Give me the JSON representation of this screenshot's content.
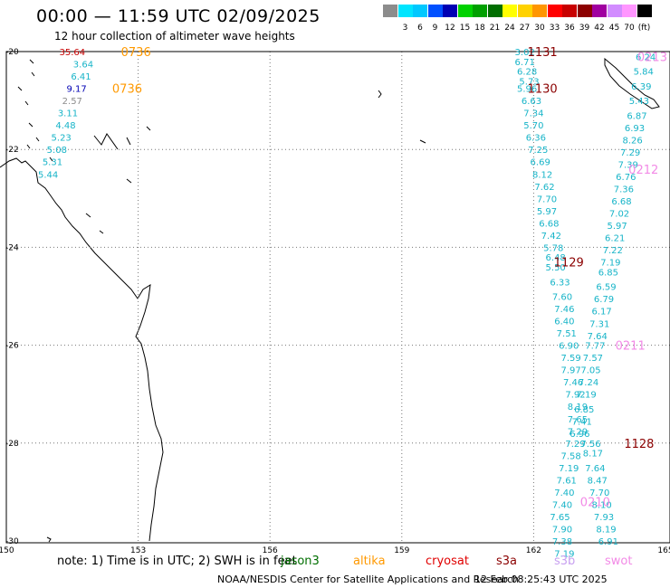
{
  "title": "00:00 — 11:59 UTC 02/09/2025",
  "subtitle": "12 hour collection of altimeter wave heights",
  "legend": {
    "unit": "(ft)",
    "bins": [
      {
        "label": "",
        "color": "#8c8c8c"
      },
      {
        "label": "3",
        "color": "#00e5ff"
      },
      {
        "label": "6",
        "color": "#00c8ff"
      },
      {
        "label": "9",
        "color": "#0050ff"
      },
      {
        "label": "12",
        "color": "#0000b4"
      },
      {
        "label": "15",
        "color": "#00d200"
      },
      {
        "label": "18",
        "color": "#00a000"
      },
      {
        "label": "21",
        "color": "#006e00"
      },
      {
        "label": "24",
        "color": "#ffff00"
      },
      {
        "label": "27",
        "color": "#ffd200"
      },
      {
        "label": "30",
        "color": "#ff9600"
      },
      {
        "label": "33",
        "color": "#ff0000"
      },
      {
        "label": "36",
        "color": "#c80000"
      },
      {
        "label": "39",
        "color": "#8c0000"
      },
      {
        "label": "42",
        "color": "#a000a0"
      },
      {
        "label": "45",
        "color": "#d28cff"
      },
      {
        "label": "70",
        "color": "#ff96ff"
      },
      {
        "label": "(ft)",
        "color": "#000000"
      }
    ]
  },
  "axes": {
    "lat_labels": [
      "-20",
      "-22",
      "-24",
      "-26",
      "-28",
      "-30"
    ],
    "lon_labels": [
      "150",
      "153",
      "156",
      "159",
      "162",
      "165"
    ]
  },
  "colors": {
    "swh": "#17b4c8",
    "pass_dark": "#8b0000",
    "pass_pink": "#f28ae6",
    "pass_orange": "#ff9900"
  },
  "passes": [
    {
      "label": "0736",
      "lon": 152.95,
      "lat": -20.0,
      "color": "#ff9900"
    },
    {
      "label": "0736",
      "lon": 152.75,
      "lat": -20.75,
      "color": "#ff9900"
    },
    {
      "label": "1131",
      "lon": 162.2,
      "lat": -20.0,
      "color": "#8b0000"
    },
    {
      "label": "1130",
      "lon": 162.2,
      "lat": -20.75,
      "color": "#8b0000"
    },
    {
      "label": "1129",
      "lon": 162.8,
      "lat": -24.3,
      "color": "#8b0000"
    },
    {
      "label": "1128",
      "lon": 164.4,
      "lat": -28.0,
      "color": "#8b0000"
    },
    {
      "label": "0213",
      "lon": 164.7,
      "lat": -20.1,
      "color": "#f28ae6"
    },
    {
      "label": "0212",
      "lon": 164.5,
      "lat": -22.4,
      "color": "#f28ae6"
    },
    {
      "label": "0211",
      "lon": 164.2,
      "lat": -26.0,
      "color": "#f28ae6"
    },
    {
      "label": "0210",
      "lon": 163.4,
      "lat": -29.2,
      "color": "#f28ae6"
    }
  ],
  "swh": [
    {
      "v": "35.64",
      "lon": 151.5,
      "lat": -20.0,
      "color": "#c80000"
    },
    {
      "v": "3.64",
      "lon": 151.75,
      "lat": -20.25
    },
    {
      "v": "6.41",
      "lon": 151.7,
      "lat": -20.5
    },
    {
      "v": "9.17",
      "lon": 151.6,
      "lat": -20.75,
      "color": "#0000b4"
    },
    {
      "v": "2.57",
      "lon": 151.5,
      "lat": -21.0,
      "color": "#8c8c8c"
    },
    {
      "v": "3.11",
      "lon": 151.4,
      "lat": -21.25
    },
    {
      "v": "4.48",
      "lon": 151.35,
      "lat": -21.5
    },
    {
      "v": "5.23",
      "lon": 151.25,
      "lat": -21.75
    },
    {
      "v": "5.08",
      "lon": 151.15,
      "lat": -22.0
    },
    {
      "v": "5.31",
      "lon": 151.05,
      "lat": -22.25
    },
    {
      "v": "5.44",
      "lon": 150.95,
      "lat": -22.5
    },
    {
      "v": "3.02",
      "lon": 161.8,
      "lat": -20.0
    },
    {
      "v": "6.71",
      "lon": 161.8,
      "lat": -20.2
    },
    {
      "v": "6.28",
      "lon": 161.85,
      "lat": -20.4
    },
    {
      "v": "5.73",
      "lon": 161.9,
      "lat": -20.6
    },
    {
      "v": "5.96",
      "lon": 161.85,
      "lat": -20.75
    },
    {
      "v": "6.63",
      "lon": 161.95,
      "lat": -21.0
    },
    {
      "v": "7.34",
      "lon": 162.0,
      "lat": -21.25
    },
    {
      "v": "5.70",
      "lon": 162.0,
      "lat": -21.5
    },
    {
      "v": "6.36",
      "lon": 162.05,
      "lat": -21.75
    },
    {
      "v": "7.25",
      "lon": 162.1,
      "lat": -22.0
    },
    {
      "v": "6.69",
      "lon": 162.15,
      "lat": -22.25
    },
    {
      "v": "8.12",
      "lon": 162.2,
      "lat": -22.5
    },
    {
      "v": "7.62",
      "lon": 162.25,
      "lat": -22.75
    },
    {
      "v": "7.70",
      "lon": 162.3,
      "lat": -23.0
    },
    {
      "v": "5.97",
      "lon": 162.3,
      "lat": -23.25
    },
    {
      "v": "6.68",
      "lon": 162.35,
      "lat": -23.5
    },
    {
      "v": "7.42",
      "lon": 162.4,
      "lat": -23.75
    },
    {
      "v": "5.78",
      "lon": 162.45,
      "lat": -24.0
    },
    {
      "v": "6.48",
      "lon": 162.5,
      "lat": -24.2
    },
    {
      "v": "5.50",
      "lon": 162.5,
      "lat": -24.4
    },
    {
      "v": "6.33",
      "lon": 162.6,
      "lat": -24.7
    },
    {
      "v": "7.60",
      "lon": 162.65,
      "lat": -25.0
    },
    {
      "v": "7.46",
      "lon": 162.7,
      "lat": -25.25
    },
    {
      "v": "6.40",
      "lon": 162.7,
      "lat": -25.5
    },
    {
      "v": "7.51",
      "lon": 162.75,
      "lat": -25.75
    },
    {
      "v": "6.90",
      "lon": 162.8,
      "lat": -26.0
    },
    {
      "v": "7.59",
      "lon": 162.85,
      "lat": -26.25
    },
    {
      "v": "7.97",
      "lon": 162.85,
      "lat": -26.5
    },
    {
      "v": "7.46",
      "lon": 162.9,
      "lat": -26.75
    },
    {
      "v": "7.92",
      "lon": 162.95,
      "lat": -27.0
    },
    {
      "v": "8.19",
      "lon": 163.0,
      "lat": -27.25
    },
    {
      "v": "7.65",
      "lon": 163.0,
      "lat": -27.5
    },
    {
      "v": "7.29",
      "lon": 163.0,
      "lat": -27.75
    },
    {
      "v": "7.29",
      "lon": 162.95,
      "lat": -28.0
    },
    {
      "v": "7.58",
      "lon": 162.85,
      "lat": -28.25
    },
    {
      "v": "7.19",
      "lon": 162.8,
      "lat": -28.5
    },
    {
      "v": "7.61",
      "lon": 162.75,
      "lat": -28.75
    },
    {
      "v": "7.40",
      "lon": 162.7,
      "lat": -29.0
    },
    {
      "v": "7.40",
      "lon": 162.65,
      "lat": -29.25
    },
    {
      "v": "7.65",
      "lon": 162.6,
      "lat": -29.5
    },
    {
      "v": "7.90",
      "lon": 162.65,
      "lat": -29.75
    },
    {
      "v": "7.38",
      "lon": 162.65,
      "lat": -30.0
    },
    {
      "v": "7.19",
      "lon": 162.7,
      "lat": -30.25
    },
    {
      "v": "6.24",
      "lon": 164.55,
      "lat": -20.1
    },
    {
      "v": "5.84",
      "lon": 164.5,
      "lat": -20.4
    },
    {
      "v": "6.39",
      "lon": 164.45,
      "lat": -20.7
    },
    {
      "v": "5.43",
      "lon": 164.4,
      "lat": -21.0
    },
    {
      "v": "6.87",
      "lon": 164.35,
      "lat": -21.3
    },
    {
      "v": "6.93",
      "lon": 164.3,
      "lat": -21.55
    },
    {
      "v": "8.26",
      "lon": 164.25,
      "lat": -21.8
    },
    {
      "v": "7.29",
      "lon": 164.2,
      "lat": -22.05
    },
    {
      "v": "7.39",
      "lon": 164.15,
      "lat": -22.3
    },
    {
      "v": "6.76",
      "lon": 164.1,
      "lat": -22.55
    },
    {
      "v": "7.36",
      "lon": 164.05,
      "lat": -22.8
    },
    {
      "v": "6.68",
      "lon": 164.0,
      "lat": -23.05
    },
    {
      "v": "7.02",
      "lon": 163.95,
      "lat": -23.3
    },
    {
      "v": "5.97",
      "lon": 163.9,
      "lat": -23.55
    },
    {
      "v": "6.21",
      "lon": 163.85,
      "lat": -23.8
    },
    {
      "v": "7.22",
      "lon": 163.8,
      "lat": -24.05
    },
    {
      "v": "7.19",
      "lon": 163.75,
      "lat": -24.3
    },
    {
      "v": "6.85",
      "lon": 163.7,
      "lat": -24.5
    },
    {
      "v": "6.59",
      "lon": 163.65,
      "lat": -24.8
    },
    {
      "v": "6.79",
      "lon": 163.6,
      "lat": -25.05
    },
    {
      "v": "6.17",
      "lon": 163.55,
      "lat": -25.3
    },
    {
      "v": "7.31",
      "lon": 163.5,
      "lat": -25.55
    },
    {
      "v": "7.64",
      "lon": 163.45,
      "lat": -25.8
    },
    {
      "v": "7.77",
      "lon": 163.4,
      "lat": -26.0
    },
    {
      "v": "7.57",
      "lon": 163.35,
      "lat": -26.25
    },
    {
      "v": "7.05",
      "lon": 163.3,
      "lat": -26.5
    },
    {
      "v": "7.24",
      "lon": 163.25,
      "lat": -26.75
    },
    {
      "v": "7.19",
      "lon": 163.2,
      "lat": -27.0
    },
    {
      "v": "6.85",
      "lon": 163.15,
      "lat": -27.3
    },
    {
      "v": "7.41",
      "lon": 163.1,
      "lat": -27.55
    },
    {
      "v": "6.96",
      "lon": 163.05,
      "lat": -27.8
    },
    {
      "v": "7.56",
      "lon": 163.3,
      "lat": -28.0
    },
    {
      "v": "8.17",
      "lon": 163.35,
      "lat": -28.2
    },
    {
      "v": "7.64",
      "lon": 163.4,
      "lat": -28.5
    },
    {
      "v": "8.47",
      "lon": 163.45,
      "lat": -28.75
    },
    {
      "v": "7.70",
      "lon": 163.5,
      "lat": -29.0
    },
    {
      "v": "8.10",
      "lon": 163.55,
      "lat": -29.25
    },
    {
      "v": "7.93",
      "lon": 163.6,
      "lat": -29.5
    },
    {
      "v": "8.19",
      "lon": 163.65,
      "lat": -29.75
    },
    {
      "v": "6.91",
      "lon": 163.7,
      "lat": -30.0
    }
  ],
  "footnote": "note:  1) Time is in UTC;  2) SWH is in feet",
  "satellites": [
    {
      "name": "jason3",
      "color": "#006e00"
    },
    {
      "name": "altika",
      "color": "#ff9900"
    },
    {
      "name": "cryosat",
      "color": "#e00000"
    },
    {
      "name": "s3a",
      "color": "#8b0000"
    },
    {
      "name": "s3b",
      "color": "#c8a0f0"
    },
    {
      "name": "swot",
      "color": "#f28ae6"
    }
  ],
  "credit": "NOAA/NESDIS Center for Satellite Applications and Research",
  "generated": "12 Feb 08:25:43 UTC 2025"
}
